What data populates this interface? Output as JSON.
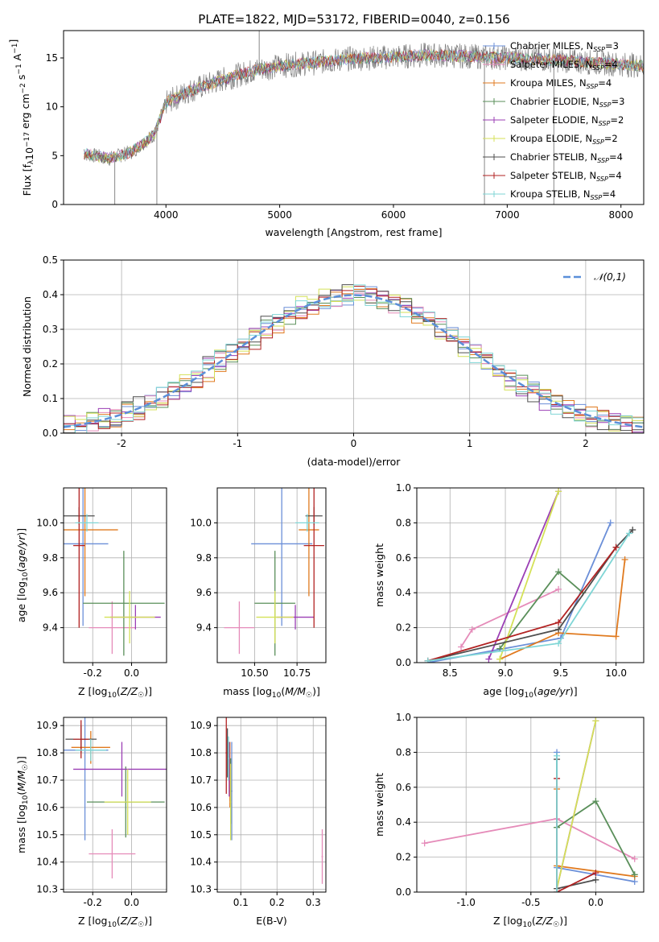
{
  "figure_title": "PLATE=1822, MJD=53172, FIBERID=0040, z=0.156",
  "models": [
    {
      "name": "Chabrier MILES, N_SSP=3",
      "base": "Chabrier MILES, N",
      "sub": "SSP",
      "tail": "=3",
      "color": "#6b8fd8"
    },
    {
      "name": "Salpeter MILES, N_SSP=4",
      "base": "Salpeter MILES, N",
      "sub": "SSP",
      "tail": "=4",
      "color": "#e58bb9"
    },
    {
      "name": "Kroupa MILES, N_SSP=4",
      "base": "Kroupa MILES, N",
      "sub": "SSP",
      "tail": "=4",
      "color": "#e07a1f"
    },
    {
      "name": "Chabrier ELODIE, N_SSP=3",
      "base": "Chabrier ELODIE, N",
      "sub": "SSP",
      "tail": "=3",
      "color": "#5a8f5a"
    },
    {
      "name": "Salpeter ELODIE, N_SSP=2",
      "base": "Salpeter ELODIE, N",
      "sub": "SSP",
      "tail": "=2",
      "color": "#9b3fb5"
    },
    {
      "name": "Kroupa ELODIE, N_SSP=2",
      "base": "Kroupa ELODIE, N",
      "sub": "SSP",
      "tail": "=2",
      "color": "#d4e157"
    },
    {
      "name": "Chabrier STELIB, N_SSP=4",
      "base": "Chabrier STELIB, N",
      "sub": "SSP",
      "tail": "=4",
      "color": "#4f4f4f"
    },
    {
      "name": "Salpeter STELIB, N_SSP=4",
      "base": "Salpeter STELIB, N",
      "sub": "SSP",
      "tail": "=4",
      "color": "#b22222"
    },
    {
      "name": "Kroupa STELIB, N_SSP=4",
      "base": "Kroupa STELIB, N",
      "sub": "SSP",
      "tail": "=4",
      "color": "#7fd6d6"
    }
  ],
  "chart_data": [
    {
      "id": "spectrum",
      "type": "line",
      "xlabel": "wavelength [Angstrom, rest frame]",
      "ylabel": "Flux [f_λ 10^-17 erg cm^-2 s^-1 A^-1]",
      "xlim": [
        3100,
        8200
      ],
      "ylim": [
        0,
        17.8
      ],
      "xticks": [
        4000,
        5000,
        6000,
        7000,
        8000
      ],
      "yticks": [
        0,
        5,
        10,
        15
      ],
      "data_color": "#808080",
      "continuum": {
        "x": [
          3280,
          3500,
          3700,
          3900,
          4000,
          4200,
          4500,
          4800,
          5000,
          5300,
          5600,
          6000,
          6300,
          6600,
          7000,
          7400,
          7800,
          8200
        ],
        "y": [
          5.2,
          4.7,
          5.4,
          7.2,
          10.4,
          11.6,
          12.8,
          13.8,
          14.2,
          14.5,
          14.9,
          15.1,
          15.3,
          15.2,
          15.0,
          14.8,
          14.5,
          14.2
        ]
      },
      "spikes": [
        {
          "x": 3550,
          "y": 0
        },
        {
          "x": 3920,
          "y": 0
        },
        {
          "x": 4820,
          "y": 17.8
        },
        {
          "x": 6800,
          "y": 0
        },
        {
          "x": 7410,
          "y": 0
        }
      ],
      "wavelength_range": [
        3280,
        8200
      ]
    },
    {
      "id": "residuals",
      "type": "step",
      "xlabel": "(data-model)/error",
      "ylabel": "Normed distribution",
      "xlim": [
        -2.5,
        2.5
      ],
      "ylim": [
        0,
        0.5
      ],
      "xticks": [
        -2,
        -1,
        0,
        1,
        2
      ],
      "yticks": [
        0.0,
        0.1,
        0.2,
        0.3,
        0.4,
        0.5
      ],
      "reference_curve": {
        "label": "𝒩(0,1)",
        "mean": 0,
        "sigma": 1,
        "color": "#5b8fd9"
      },
      "bin_width": 0.1,
      "bin_start": -2.5
    },
    {
      "id": "age_vs_Z",
      "type": "errorbar",
      "xlabel": "Z [log10(Z/Z☉)]",
      "ylabel": "age [log10(age/yr)]",
      "xlim": [
        -0.35,
        0.18
      ],
      "ylim": [
        9.2,
        10.2
      ],
      "xticks": [
        -0.2,
        0.0
      ],
      "yticks": [
        9.4,
        9.6,
        9.8,
        10.0
      ],
      "points": [
        {
          "x": -0.25,
          "y": 9.88,
          "xerr": 0.13,
          "yerr": 0.47,
          "model": 0
        },
        {
          "x": -0.1,
          "y": 9.4,
          "xerr": 0.12,
          "yerr": 0.15,
          "model": 1
        },
        {
          "x": -0.24,
          "y": 9.96,
          "xerr": 0.17,
          "yerr": 0.38,
          "model": 2
        },
        {
          "x": -0.04,
          "y": 9.54,
          "xerr": 0.21,
          "yerr": 0.3,
          "model": 3
        },
        {
          "x": 0.02,
          "y": 9.46,
          "xerr": 0.13,
          "yerr": 0.07,
          "model": 4
        },
        {
          "x": -0.01,
          "y": 9.46,
          "xerr": 0.13,
          "yerr": 0.15,
          "model": 5
        },
        {
          "x": -0.27,
          "y": 10.04,
          "xerr": 0.08,
          "yerr": 0.05,
          "model": 6
        },
        {
          "x": -0.27,
          "y": 9.87,
          "xerr": 0.03,
          "yerr": 0.47,
          "model": 7
        },
        {
          "x": -0.23,
          "y": 10.0,
          "xerr": 0.06,
          "yerr": 0.05,
          "model": 8
        }
      ]
    },
    {
      "id": "age_vs_mass",
      "type": "errorbar",
      "xlabel": "mass [log10(M/M☉)]",
      "ylabel": "",
      "xlim": [
        10.28,
        10.92
      ],
      "ylim": [
        9.2,
        10.2
      ],
      "xticks": [
        10.5,
        10.75
      ],
      "xticklabels": [
        "10.50",
        "10.75"
      ],
      "yticks": [
        9.4,
        9.6,
        9.8,
        10.0
      ],
      "points": [
        {
          "x": 10.66,
          "y": 9.88,
          "xerr": 0.18,
          "yerr": 0.47,
          "model": 0
        },
        {
          "x": 10.41,
          "y": 9.4,
          "xerr": 0.09,
          "yerr": 0.15,
          "model": 1
        },
        {
          "x": 10.82,
          "y": 9.96,
          "xerr": 0.06,
          "yerr": 0.38,
          "model": 2
        },
        {
          "x": 10.62,
          "y": 9.54,
          "xerr": 0.12,
          "yerr": 0.3,
          "model": 3
        },
        {
          "x": 10.74,
          "y": 9.46,
          "xerr": 0.11,
          "yerr": 0.07,
          "model": 4
        },
        {
          "x": 10.62,
          "y": 9.46,
          "xerr": 0.11,
          "yerr": 0.15,
          "model": 5
        },
        {
          "x": 10.85,
          "y": 10.04,
          "xerr": 0.05,
          "yerr": 0.05,
          "model": 6
        },
        {
          "x": 10.85,
          "y": 9.87,
          "xerr": 0.06,
          "yerr": 0.47,
          "model": 7
        },
        {
          "x": 10.81,
          "y": 10.0,
          "xerr": 0.07,
          "yerr": 0.05,
          "model": 8
        }
      ]
    },
    {
      "id": "weight_vs_age",
      "type": "line",
      "xlabel": "age [log10(age/yr)]",
      "ylabel": "mass weight",
      "xlim": [
        8.2,
        10.25
      ],
      "ylim": [
        0,
        1.0
      ],
      "xticks": [
        8.5,
        9.0,
        9.5,
        10.0
      ],
      "yticks": [
        0.0,
        0.2,
        0.4,
        0.6,
        0.8,
        1.0
      ],
      "series": [
        {
          "model": 0,
          "x": [
            8.3,
            9.5,
            9.95
          ],
          "y": [
            0.0,
            0.14,
            0.8
          ]
        },
        {
          "model": 1,
          "x": [
            8.6,
            8.7,
            9.48
          ],
          "y": [
            0.09,
            0.19,
            0.42
          ]
        },
        {
          "model": 2,
          "x": [
            8.95,
            9.48,
            10.0,
            10.08
          ],
          "y": [
            0.02,
            0.17,
            0.15,
            0.59
          ]
        },
        {
          "model": 3,
          "x": [
            8.95,
            9.48,
            9.7
          ],
          "y": [
            0.08,
            0.52,
            0.4
          ]
        },
        {
          "model": 4,
          "x": [
            8.85,
            9.48
          ],
          "y": [
            0.02,
            0.98
          ]
        },
        {
          "model": 5,
          "x": [
            8.95,
            9.48
          ],
          "y": [
            0.02,
            0.98
          ]
        },
        {
          "model": 6,
          "x": [
            8.3,
            9.48,
            10.0,
            10.15
          ],
          "y": [
            0.01,
            0.19,
            0.66,
            0.76
          ]
        },
        {
          "model": 7,
          "x": [
            8.3,
            9.48,
            10.0
          ],
          "y": [
            0.01,
            0.23,
            0.66
          ]
        },
        {
          "model": 8,
          "x": [
            8.3,
            9.48,
            10.12
          ],
          "y": [
            0.01,
            0.11,
            0.74
          ]
        }
      ]
    },
    {
      "id": "mass_vs_Z",
      "type": "errorbar",
      "xlabel": "Z [log10(Z/Z☉)]",
      "ylabel": "mass [log10(M/M☉)]",
      "xlim": [
        -0.35,
        0.18
      ],
      "ylim": [
        10.29,
        10.93
      ],
      "xticks": [
        -0.2,
        0.0
      ],
      "yticks": [
        10.3,
        10.4,
        10.5,
        10.6,
        10.7,
        10.8,
        10.9
      ],
      "points": [
        {
          "x": -0.24,
          "y": 10.81,
          "xerr": 0.12,
          "yerr": 0.33,
          "model": 0
        },
        {
          "x": -0.1,
          "y": 10.43,
          "xerr": 0.12,
          "yerr": 0.09,
          "model": 1
        },
        {
          "x": -0.21,
          "y": 10.82,
          "xerr": 0.1,
          "yerr": 0.06,
          "model": 2
        },
        {
          "x": -0.03,
          "y": 10.62,
          "xerr": 0.2,
          "yerr": 0.13,
          "model": 3
        },
        {
          "x": -0.05,
          "y": 10.74,
          "xerr": 0.25,
          "yerr": 0.1,
          "model": 4
        },
        {
          "x": -0.02,
          "y": 10.62,
          "xerr": 0.12,
          "yerr": 0.12,
          "model": 5
        },
        {
          "x": -0.26,
          "y": 10.85,
          "xerr": 0.08,
          "yerr": 0.05,
          "model": 6
        },
        {
          "x": -0.26,
          "y": 10.85,
          "xerr": 0.04,
          "yerr": 0.07,
          "model": 7
        },
        {
          "x": -0.21,
          "y": 10.81,
          "xerr": 0.08,
          "yerr": 0.04,
          "model": 8
        }
      ]
    },
    {
      "id": "mass_vs_ebv",
      "type": "errorbar",
      "xlabel": "E(B-V)",
      "ylabel": "",
      "xlim": [
        0.035,
        0.335
      ],
      "ylim": [
        10.29,
        10.93
      ],
      "xticks": [
        0.1,
        0.2,
        0.3
      ],
      "yticks": [
        10.3,
        10.4,
        10.5,
        10.6,
        10.7,
        10.8,
        10.9
      ],
      "points": [
        {
          "x": 0.075,
          "y": 10.66,
          "xerr": 0.002,
          "yerr": 0.18,
          "model": 0
        },
        {
          "x": 0.325,
          "y": 10.42,
          "xerr": 0.002,
          "yerr": 0.1,
          "model": 1
        },
        {
          "x": 0.07,
          "y": 10.72,
          "xerr": 0.002,
          "yerr": 0.12,
          "model": 2
        },
        {
          "x": 0.072,
          "y": 10.66,
          "xerr": 0.002,
          "yerr": 0.12,
          "model": 3
        },
        {
          "x": 0.068,
          "y": 10.74,
          "xerr": 0.002,
          "yerr": 0.1,
          "model": 4
        },
        {
          "x": 0.072,
          "y": 10.62,
          "xerr": 0.002,
          "yerr": 0.14,
          "model": 5
        },
        {
          "x": 0.063,
          "y": 10.8,
          "xerr": 0.002,
          "yerr": 0.09,
          "model": 6
        },
        {
          "x": 0.06,
          "y": 10.8,
          "xerr": 0.002,
          "yerr": 0.15,
          "model": 7
        },
        {
          "x": 0.066,
          "y": 10.78,
          "xerr": 0.002,
          "yerr": 0.08,
          "model": 8
        }
      ]
    },
    {
      "id": "weight_vs_Z",
      "type": "line",
      "xlabel": "Z [log10(Z/Z☉)]",
      "ylabel": "mass weight",
      "xlim": [
        -1.38,
        0.37
      ],
      "ylim": [
        0,
        1.0
      ],
      "xticks": [
        -1.0,
        -0.5,
        0.0
      ],
      "yticks": [
        0.0,
        0.2,
        0.4,
        0.6,
        0.8,
        1.0
      ],
      "series": [
        {
          "model": 0,
          "x": [
            -0.3,
            -0.3,
            0.3
          ],
          "y": [
            0.8,
            0.14,
            0.06
          ]
        },
        {
          "model": 1,
          "x": [
            -1.32,
            -0.3,
            0.3
          ],
          "y": [
            0.28,
            0.42,
            0.19
          ]
        },
        {
          "model": 2,
          "x": [
            -0.3,
            -0.3,
            0.3
          ],
          "y": [
            0.59,
            0.15,
            0.09
          ]
        },
        {
          "model": 3,
          "x": [
            -0.3,
            0.0,
            0.3
          ],
          "y": [
            0.37,
            0.52,
            0.1
          ]
        },
        {
          "model": 4,
          "x": [
            -0.3,
            0.0
          ],
          "y": [
            0.02,
            0.98
          ]
        },
        {
          "model": 5,
          "x": [
            -0.3,
            0.0
          ],
          "y": [
            0.02,
            0.98
          ]
        },
        {
          "model": 6,
          "x": [
            -0.3,
            -0.3,
            0.0
          ],
          "y": [
            0.76,
            0.02,
            0.07
          ]
        },
        {
          "model": 7,
          "x": [
            -0.3,
            -0.3,
            0.0
          ],
          "y": [
            0.65,
            0.0,
            0.11
          ]
        },
        {
          "model": 8,
          "x": [
            -0.3,
            -0.3
          ],
          "y": [
            0.78,
            0.0
          ]
        }
      ]
    }
  ]
}
